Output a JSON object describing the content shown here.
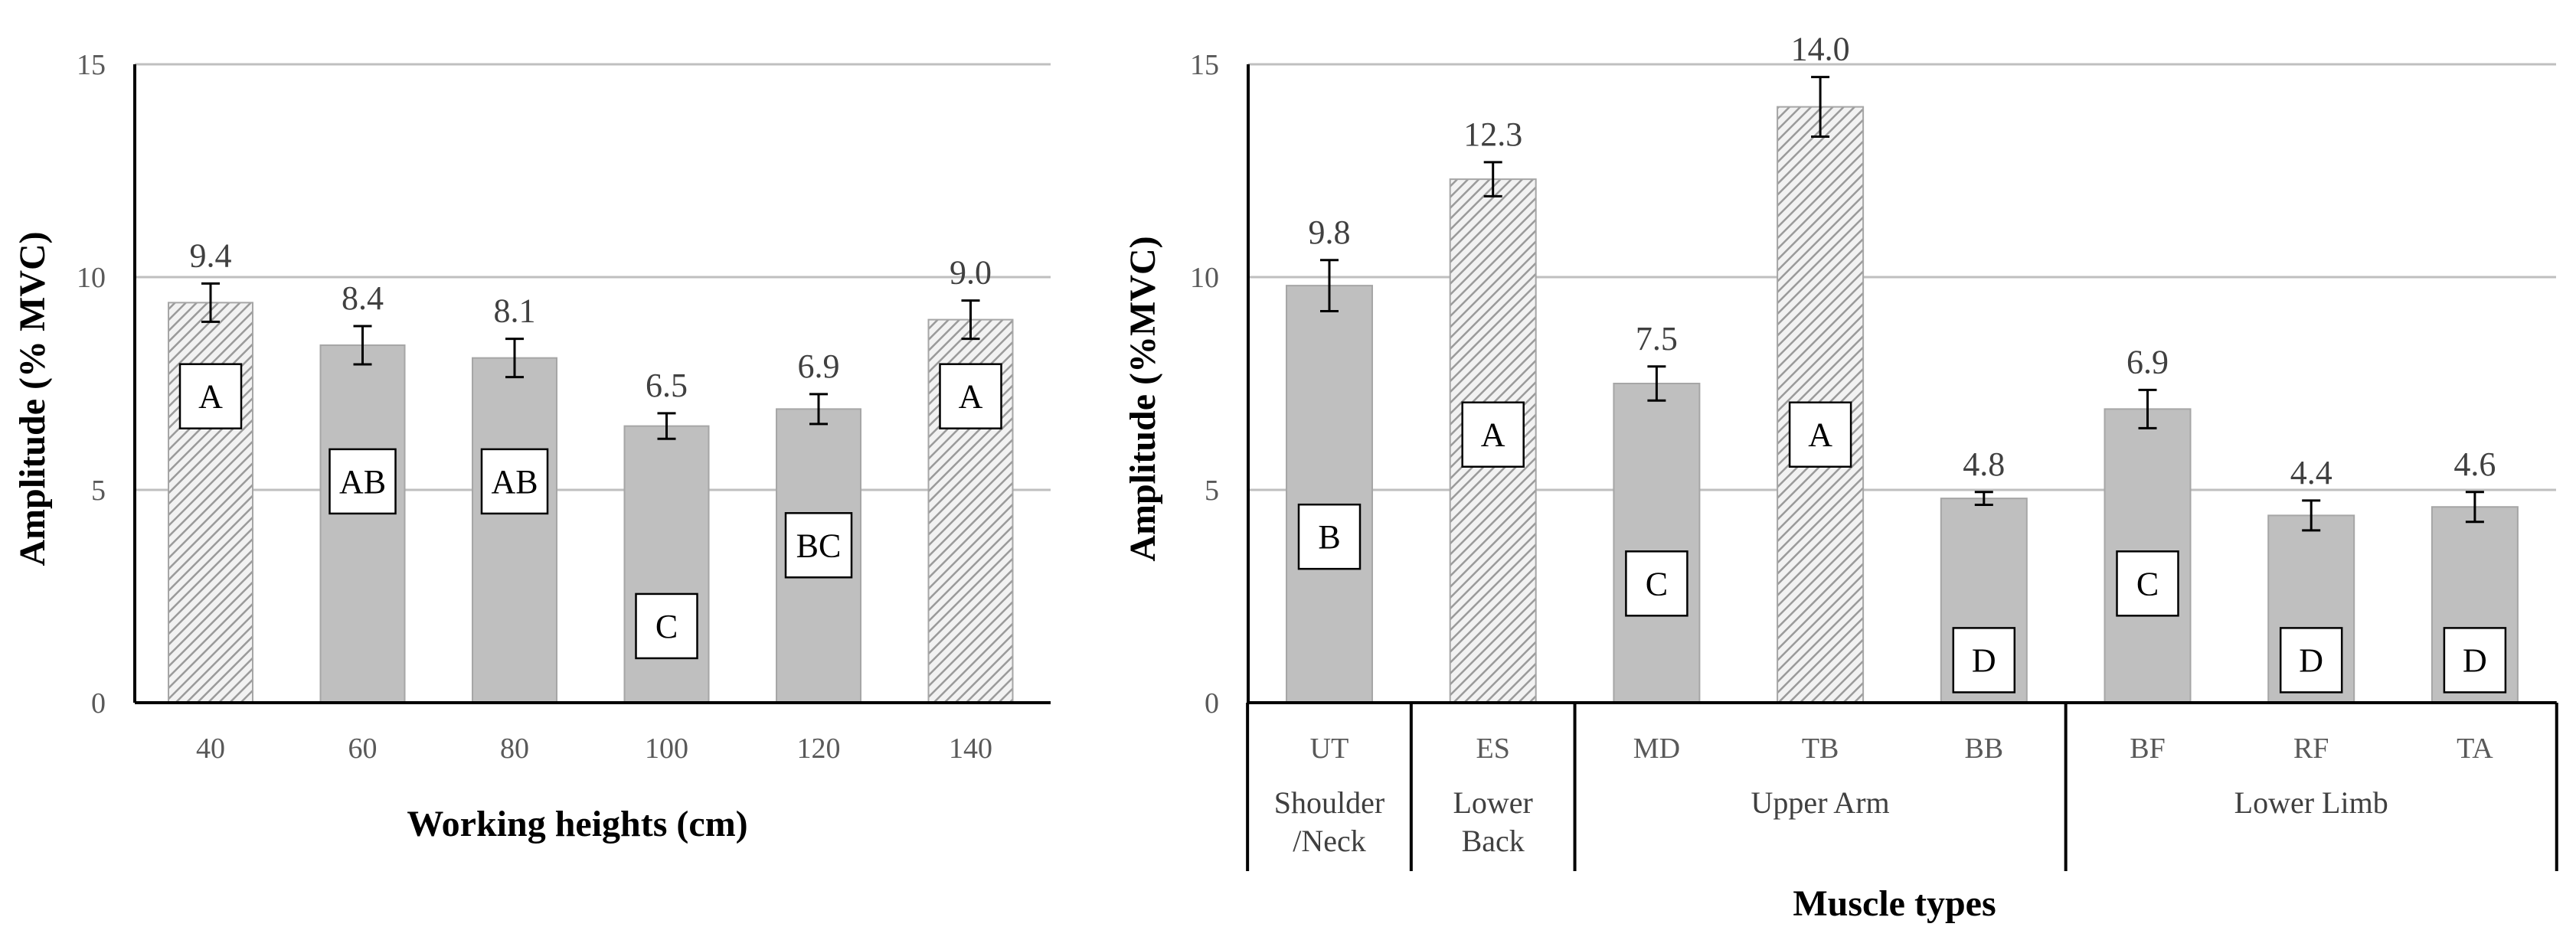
{
  "colors": {
    "bar_fill": "#bfbfbf",
    "bar_stroke": "#a6a6a6",
    "hatch_line": "#9a9a9a",
    "grid": "#bfbfbf",
    "axis": "#000000",
    "text": "#404040"
  },
  "chart_data": [
    {
      "type": "bar",
      "title": "",
      "xlabel": "Working heights (cm)",
      "ylabel": "Amplitude (% MVC)",
      "ylim": [
        0,
        15
      ],
      "yticks": [
        "0",
        "5",
        "10",
        "15"
      ],
      "grid": true,
      "categories": [
        "40",
        "60",
        "80",
        "100",
        "120",
        "140"
      ],
      "values": [
        9.4,
        8.4,
        8.1,
        6.5,
        6.9,
        9.0
      ],
      "value_labels": [
        "9.4",
        "8.4",
        "8.1",
        "6.5",
        "6.9",
        "9.0"
      ],
      "errors": [
        0.45,
        0.45,
        0.45,
        0.3,
        0.35,
        0.45
      ],
      "hatched": [
        true,
        false,
        false,
        false,
        false,
        true
      ],
      "groups": [
        "A",
        "AB",
        "AB",
        "C",
        "BC",
        "A"
      ],
      "group_label_y": [
        7.2,
        5.2,
        5.2,
        1.8,
        3.7,
        7.2
      ]
    },
    {
      "type": "bar",
      "title": "",
      "xlabel": "Muscle types",
      "ylabel": "Amplitude (%MVC)",
      "ylim": [
        0,
        15
      ],
      "yticks": [
        "0",
        "5",
        "10",
        "15"
      ],
      "grid": true,
      "categories": [
        "UT",
        "ES",
        "MD",
        "TB",
        "BB",
        "BF",
        "RF",
        "TA"
      ],
      "values": [
        9.8,
        12.3,
        7.5,
        14.0,
        4.8,
        6.9,
        4.4,
        4.6
      ],
      "value_labels": [
        "9.8",
        "12.3",
        "7.5",
        "14.0",
        "4.8",
        "6.9",
        "4.4",
        "4.6"
      ],
      "errors": [
        0.6,
        0.4,
        0.4,
        0.7,
        0.15,
        0.45,
        0.35,
        0.35
      ],
      "hatched": [
        false,
        true,
        false,
        true,
        false,
        false,
        false,
        false
      ],
      "groups": [
        "B",
        "A",
        "C",
        "A",
        "D",
        "C",
        "D",
        "D"
      ],
      "group_label_y": [
        3.9,
        6.3,
        2.8,
        6.3,
        1.0,
        2.8,
        1.0,
        1.0
      ],
      "category_groups": [
        {
          "label": "Shoulder\n/Neck",
          "span": [
            0,
            0
          ]
        },
        {
          "label": "Lower\nBack",
          "span": [
            1,
            1
          ]
        },
        {
          "label": "Upper Arm",
          "span": [
            2,
            4
          ]
        },
        {
          "label": "Lower Limb",
          "span": [
            5,
            7
          ]
        }
      ]
    }
  ]
}
